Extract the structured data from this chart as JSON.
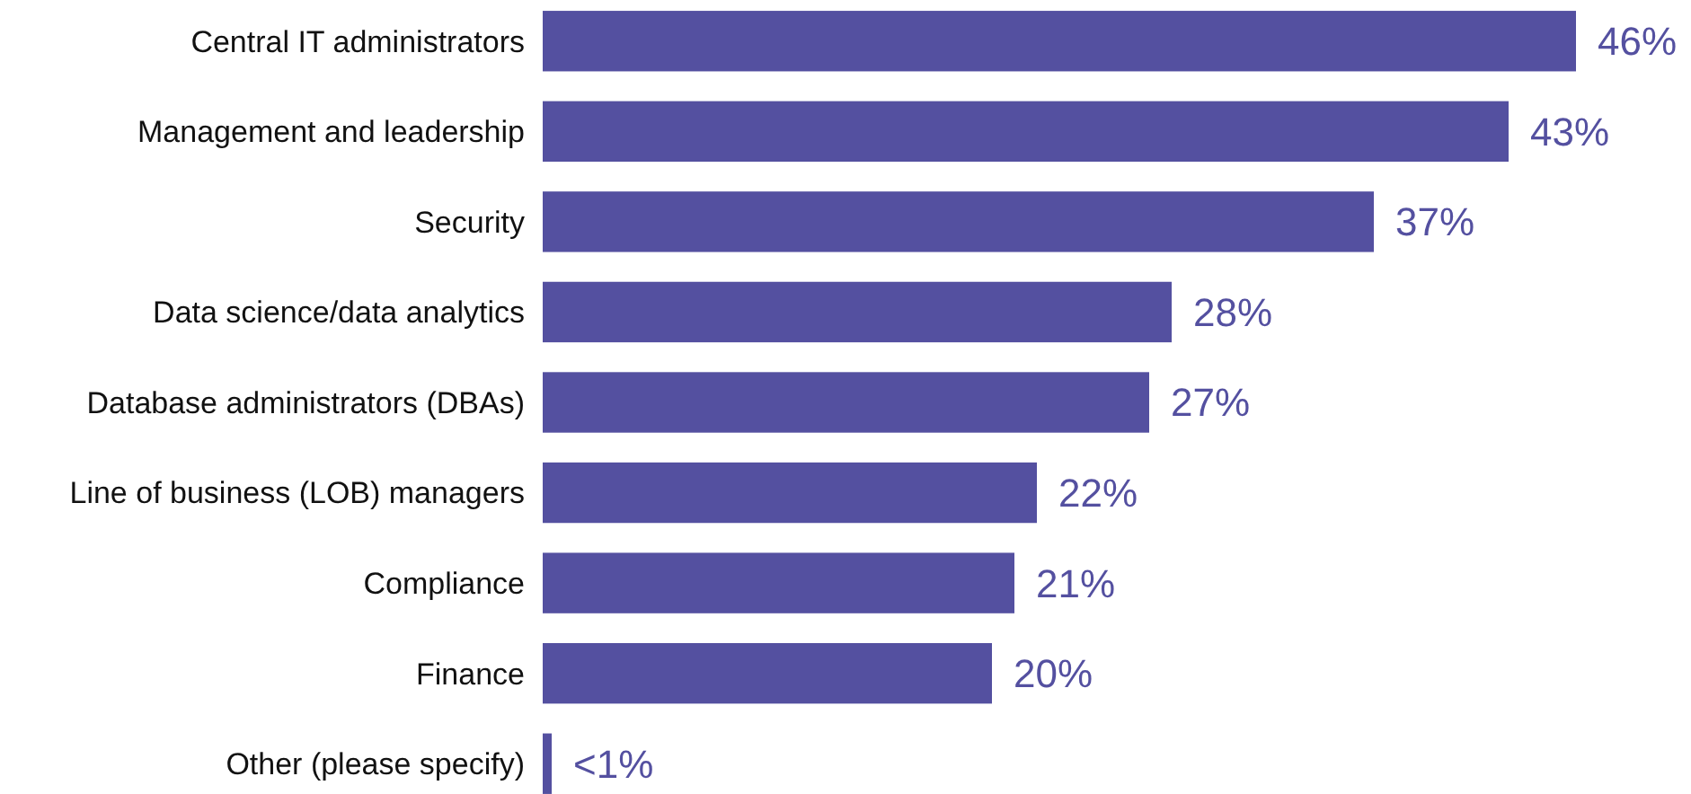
{
  "chart_data": {
    "type": "bar",
    "orientation": "horizontal",
    "categories": [
      "Central IT administrators",
      "Management and leadership",
      "Security",
      "Data science/data analytics",
      "Database administrators (DBAs)",
      "Line of business (LOB) managers",
      "Compliance",
      "Finance",
      "Other (please specify)"
    ],
    "values": [
      46,
      43,
      37,
      28,
      27,
      22,
      21,
      20,
      0.4
    ],
    "value_labels": [
      "46%",
      "43%",
      "37%",
      "28%",
      "27%",
      "22%",
      "21%",
      "20%",
      "<1%"
    ],
    "color": "#5450a0"
  }
}
